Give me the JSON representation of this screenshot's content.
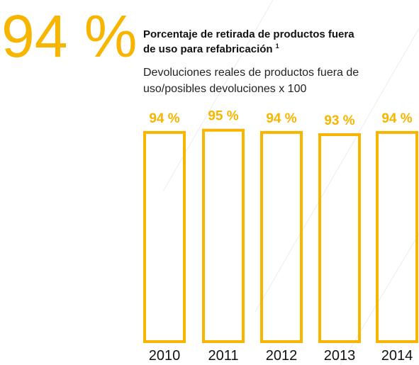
{
  "chart_data": {
    "type": "bar",
    "headline": "94 %",
    "title_lines": [
      "Porcentaje de retirada de productos fuera",
      "de uso para refabricación"
    ],
    "footnote_mark": "1",
    "subtitle_lines": [
      "Devoluciones reales de productos fuera de",
      "uso/posibles devoluciones x 100"
    ],
    "categories": [
      "2010",
      "2011",
      "2012",
      "2013",
      "2014"
    ],
    "values": [
      94,
      95,
      94,
      93,
      94
    ],
    "value_labels": [
      "94 %",
      "95 %",
      "94 %",
      "93 %",
      "94 %"
    ],
    "color": "#f7b500",
    "ylim": [
      0,
      100
    ]
  }
}
